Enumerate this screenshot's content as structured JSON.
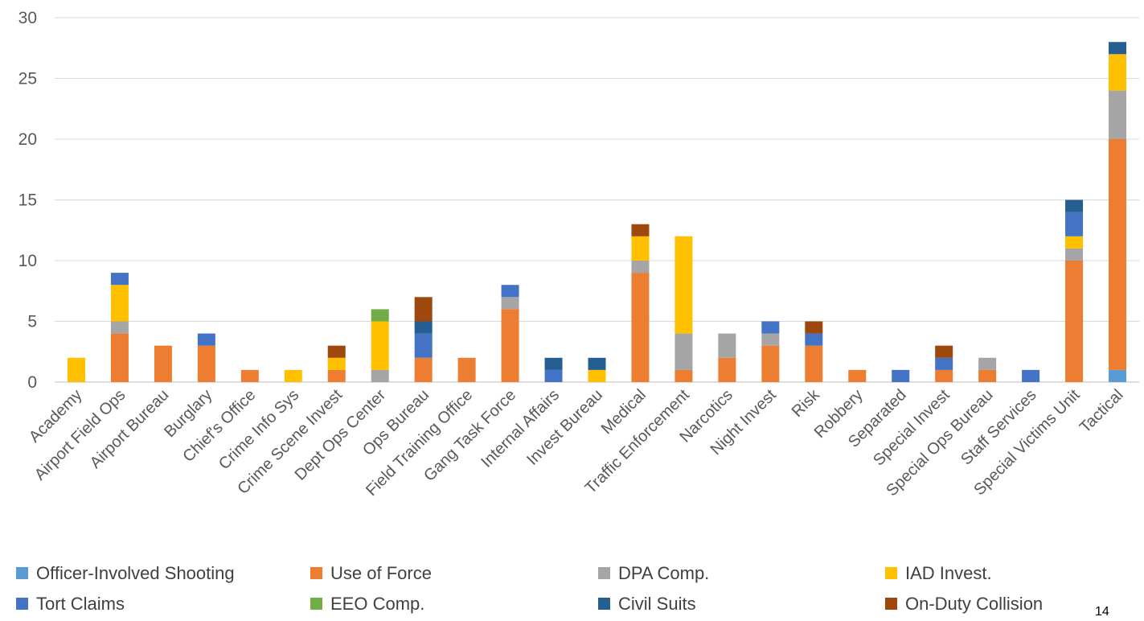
{
  "chart_data": {
    "type": "bar",
    "stacked": true,
    "categories": [
      "Academy",
      "Airport Field Ops",
      "Airport Bureau",
      "Burglary",
      "Chief's Office",
      "Crime Info Sys",
      "Crime Scene Invest",
      "Dept Ops Center",
      "Ops Bureau",
      "Field Training Office",
      "Gang Task Force",
      "Internal Affairs",
      "Invest Bureau",
      "Medical",
      "Traffic Enforcement",
      "Narcotics",
      "Night Invest",
      "Risk",
      "Robbery",
      "Separated",
      "Special Invest",
      "Special Ops Bureau",
      "Staff Services",
      "Special Victims Unit",
      "Tactical"
    ],
    "series": [
      {
        "name": "Officer-Involved Shooting",
        "color": "#5B9BD5",
        "values": [
          0,
          0,
          0,
          0,
          0,
          0,
          0,
          0,
          0,
          0,
          0,
          0,
          0,
          0,
          0,
          0,
          0,
          0,
          0,
          0,
          0,
          0,
          0,
          0,
          1
        ]
      },
      {
        "name": "Use of Force",
        "color": "#ED7D31",
        "values": [
          0,
          4,
          3,
          3,
          1,
          0,
          1,
          0,
          2,
          2,
          6,
          0,
          0,
          9,
          1,
          2,
          3,
          3,
          1,
          0,
          1,
          1,
          0,
          10,
          19
        ]
      },
      {
        "name": "DPA Comp.",
        "color": "#A5A5A5",
        "values": [
          0,
          1,
          0,
          0,
          0,
          0,
          0,
          1,
          0,
          0,
          1,
          0,
          0,
          1,
          3,
          2,
          1,
          0,
          0,
          0,
          0,
          1,
          0,
          1,
          4
        ]
      },
      {
        "name": "IAD Invest.",
        "color": "#FFC000",
        "values": [
          2,
          3,
          0,
          0,
          0,
          1,
          1,
          4,
          0,
          0,
          0,
          0,
          1,
          2,
          8,
          0,
          0,
          0,
          0,
          0,
          0,
          0,
          0,
          1,
          3
        ]
      },
      {
        "name": "Tort Claims",
        "color": "#4472C4",
        "values": [
          0,
          1,
          0,
          1,
          0,
          0,
          0,
          0,
          2,
          0,
          1,
          1,
          0,
          0,
          0,
          0,
          1,
          1,
          0,
          1,
          1,
          0,
          1,
          2,
          0
        ]
      },
      {
        "name": "EEO Comp.",
        "color": "#70AD47",
        "values": [
          0,
          0,
          0,
          0,
          0,
          0,
          0,
          1,
          0,
          0,
          0,
          0,
          0,
          0,
          0,
          0,
          0,
          0,
          0,
          0,
          0,
          0,
          0,
          0,
          0
        ]
      },
      {
        "name": "Civil Suits",
        "color": "#255E91",
        "values": [
          0,
          0,
          0,
          0,
          0,
          0,
          0,
          0,
          1,
          0,
          0,
          1,
          1,
          0,
          0,
          0,
          0,
          0,
          0,
          0,
          0,
          0,
          0,
          1,
          1
        ]
      },
      {
        "name": "On-Duty Collision",
        "color": "#9E480E",
        "values": [
          0,
          0,
          0,
          0,
          0,
          0,
          1,
          0,
          2,
          0,
          0,
          0,
          0,
          1,
          0,
          0,
          0,
          1,
          0,
          0,
          1,
          0,
          0,
          0,
          0
        ]
      }
    ],
    "yticks": [
      0,
      5,
      10,
      15,
      20,
      25,
      30
    ],
    "ylim": [
      0,
      30
    ],
    "grid": true,
    "legend_position": "bottom"
  },
  "page_number": "14"
}
